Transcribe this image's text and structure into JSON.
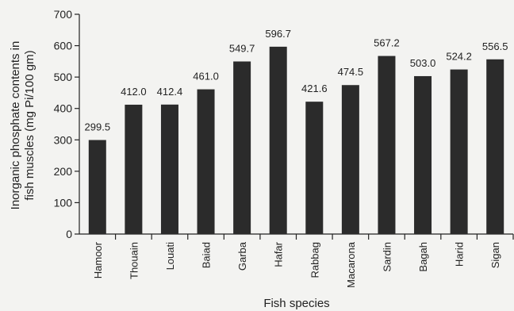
{
  "chart_data": {
    "type": "bar",
    "categories": [
      "Hamoor",
      "Thouain",
      "Louati",
      "Baiad",
      "Garba",
      "Hafar",
      "Rabbag",
      "Macarona",
      "Sardin",
      "Bagah",
      "Harid",
      "Sigan"
    ],
    "values": [
      299.5,
      412.0,
      412.4,
      461.0,
      549.7,
      596.7,
      421.6,
      474.5,
      567.2,
      503.0,
      524.2,
      556.5
    ],
    "value_labels": [
      "299.5",
      "412.0",
      "412.4",
      "461.0",
      "549.7",
      "596.7",
      "421.6",
      "474.5",
      "567.2",
      "503.0",
      "524.2",
      "556.5"
    ],
    "xlabel": "Fish species",
    "ylabel_line1": "Inorganic phosphate contents in",
    "ylabel_line2": "fish muscles (mg Pi/100 gm)",
    "ylim": [
      0,
      700
    ],
    "yticks": [
      "0",
      "100",
      "200",
      "300",
      "400",
      "500",
      "600",
      "700"
    ],
    "grid": false,
    "bar_color": "#2b2b2b"
  }
}
